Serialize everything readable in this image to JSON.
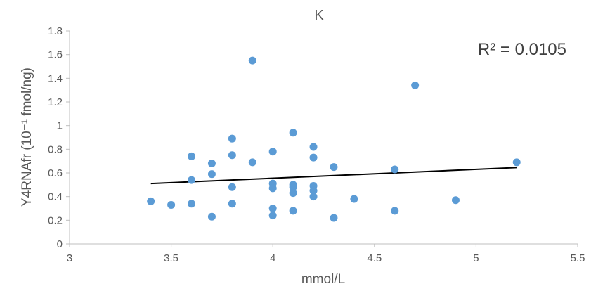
{
  "chart_data": {
    "type": "scatter",
    "title": "K",
    "xlabel": "mmol/L",
    "ylabel": "Y4RNAfr (10⁻¹ fmol/ng)",
    "annotation": "R² = 0.0105",
    "xlim": [
      3,
      5.5
    ],
    "ylim": [
      0,
      1.8
    ],
    "x_ticks": [
      3,
      3.5,
      4,
      4.5,
      5,
      5.5
    ],
    "x_tick_labels": [
      "3",
      "3.5",
      "4",
      "4.5",
      "5",
      "5.5"
    ],
    "y_ticks": [
      0,
      0.2,
      0.4,
      0.6,
      0.8,
      1,
      1.2,
      1.4,
      1.6,
      1.8
    ],
    "y_tick_labels": [
      "0",
      "0.2",
      "0.4",
      "0.6",
      "0.8",
      "1",
      "1.2",
      "1.4",
      "1.6",
      "1.8"
    ],
    "grid": false,
    "marker_color": "#5b9bd5",
    "trendline_color": "#000000",
    "points": [
      {
        "x": 3.4,
        "y": 0.36
      },
      {
        "x": 3.5,
        "y": 0.33
      },
      {
        "x": 3.6,
        "y": 0.74
      },
      {
        "x": 3.6,
        "y": 0.54
      },
      {
        "x": 3.6,
        "y": 0.34
      },
      {
        "x": 3.7,
        "y": 0.68
      },
      {
        "x": 3.7,
        "y": 0.59
      },
      {
        "x": 3.7,
        "y": 0.23
      },
      {
        "x": 3.8,
        "y": 0.89
      },
      {
        "x": 3.8,
        "y": 0.75
      },
      {
        "x": 3.8,
        "y": 0.48
      },
      {
        "x": 3.8,
        "y": 0.34
      },
      {
        "x": 3.9,
        "y": 1.55
      },
      {
        "x": 3.9,
        "y": 0.69
      },
      {
        "x": 4.0,
        "y": 0.78
      },
      {
        "x": 4.0,
        "y": 0.51
      },
      {
        "x": 4.0,
        "y": 0.47
      },
      {
        "x": 4.0,
        "y": 0.3
      },
      {
        "x": 4.0,
        "y": 0.24
      },
      {
        "x": 4.1,
        "y": 0.94
      },
      {
        "x": 4.1,
        "y": 0.5
      },
      {
        "x": 4.1,
        "y": 0.48
      },
      {
        "x": 4.1,
        "y": 0.43
      },
      {
        "x": 4.1,
        "y": 0.28
      },
      {
        "x": 4.2,
        "y": 0.82
      },
      {
        "x": 4.2,
        "y": 0.73
      },
      {
        "x": 4.2,
        "y": 0.49
      },
      {
        "x": 4.2,
        "y": 0.45
      },
      {
        "x": 4.2,
        "y": 0.4
      },
      {
        "x": 4.3,
        "y": 0.65
      },
      {
        "x": 4.3,
        "y": 0.22
      },
      {
        "x": 4.4,
        "y": 0.38
      },
      {
        "x": 4.6,
        "y": 0.63
      },
      {
        "x": 4.6,
        "y": 0.28
      },
      {
        "x": 4.7,
        "y": 1.34
      },
      {
        "x": 4.9,
        "y": 0.37
      },
      {
        "x": 5.2,
        "y": 0.69
      }
    ],
    "trendline": {
      "x": [
        3.4,
        5.2
      ],
      "y": [
        0.51,
        0.645
      ]
    }
  }
}
